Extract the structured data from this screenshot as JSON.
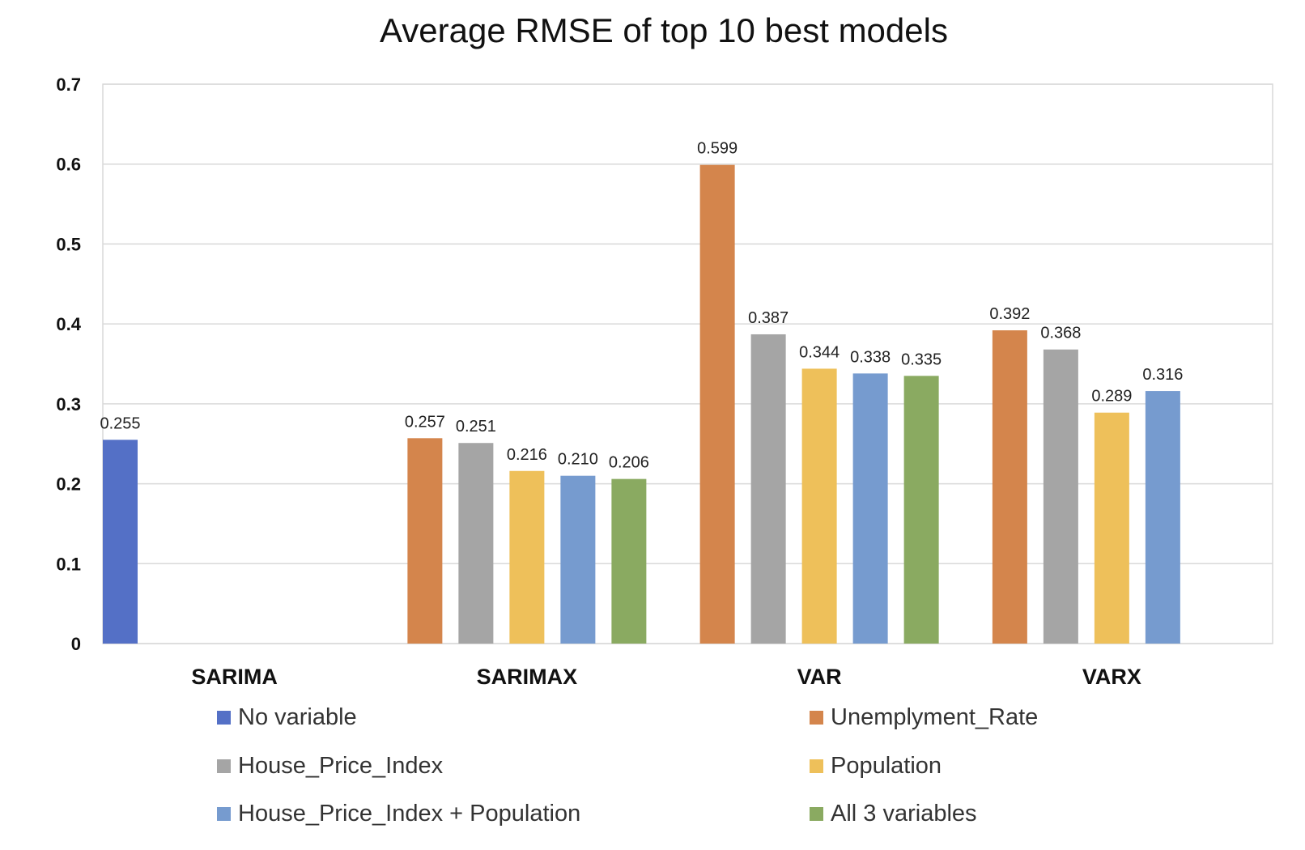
{
  "chart_data": {
    "type": "bar",
    "title": "Average RMSE of top 10 best models",
    "xlabel": "",
    "ylabel": "",
    "ylim": [
      0,
      0.7
    ],
    "yticks": [
      "0",
      "0.1",
      "0.2",
      "0.3",
      "0.4",
      "0.5",
      "0.6",
      "0.7"
    ],
    "grid": true,
    "legend_position": "bottom",
    "categories": [
      "SARIMA",
      "SARIMAX",
      "VAR",
      "VARX"
    ],
    "series": [
      {
        "name": "No variable",
        "color": "#5470C6",
        "values": [
          0.255,
          null,
          null,
          null
        ],
        "labels": [
          "0.255",
          null,
          null,
          null
        ]
      },
      {
        "name": "Unemplyment_Rate",
        "color": "#D4854C",
        "values": [
          null,
          0.257,
          0.599,
          0.392
        ],
        "labels": [
          null,
          "0.257",
          "0.599",
          "0.392"
        ]
      },
      {
        "name": "House_Price_Index",
        "color": "#A5A5A5",
        "values": [
          null,
          0.251,
          0.387,
          0.368
        ],
        "labels": [
          null,
          "0.251",
          "0.387",
          "0.368"
        ]
      },
      {
        "name": "Population",
        "color": "#EEC05A",
        "values": [
          null,
          0.216,
          0.344,
          0.289
        ],
        "labels": [
          null,
          "0.216",
          "0.344",
          "0.289"
        ]
      },
      {
        "name": "House_Price_Index + Population",
        "color": "#769BCF",
        "values": [
          null,
          0.21,
          0.338,
          0.316
        ],
        "labels": [
          null,
          "0.210",
          "0.338",
          "0.316"
        ]
      },
      {
        "name": "All 3 variables",
        "color": "#8AAA61",
        "values": [
          null,
          0.206,
          0.335,
          null
        ],
        "labels": [
          null,
          "0.206",
          "0.335",
          null
        ]
      }
    ]
  }
}
